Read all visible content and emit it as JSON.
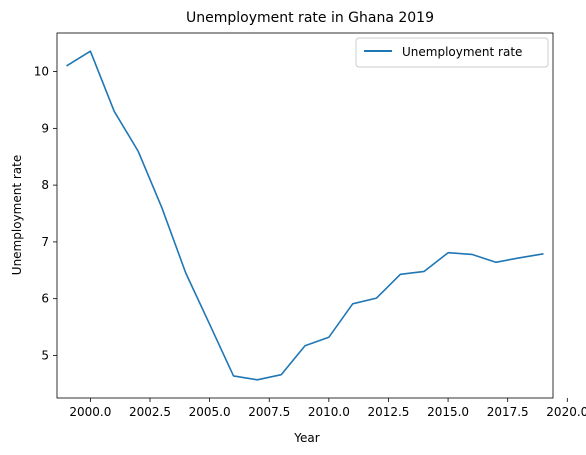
{
  "chart_data": {
    "type": "line",
    "title": "Unemployment rate in Ghana 2019",
    "xlabel": "Year",
    "ylabel": "Unemployment rate",
    "xlim": [
      1998.6,
      2019.4
    ],
    "ylim": [
      4.25,
      10.68
    ],
    "xticks": [
      2000.0,
      2002.5,
      2005.0,
      2007.5,
      2010.0,
      2012.5,
      2015.0,
      2017.5,
      2020.0
    ],
    "xtick_labels": [
      "2000.0",
      "2002.5",
      "2005.0",
      "2007.5",
      "2010.0",
      "2012.5",
      "2015.0",
      "2017.5",
      "2020.0"
    ],
    "yticks": [
      5,
      6,
      7,
      8,
      9,
      10
    ],
    "ytick_labels": [
      "5",
      "6",
      "7",
      "8",
      "9",
      "10"
    ],
    "grid": false,
    "legend": {
      "position": "top-right"
    },
    "series": [
      {
        "name": "Unemployment rate",
        "color": "#1f77b4",
        "x": [
          1999,
          2000,
          2001,
          2002,
          2003,
          2004,
          2005,
          2006,
          2007,
          2008,
          2009,
          2010,
          2011,
          2012,
          2013,
          2014,
          2015,
          2016,
          2017,
          2018,
          2019
        ],
        "y": [
          10.1,
          10.36,
          9.3,
          8.6,
          7.6,
          6.45,
          5.55,
          4.64,
          4.57,
          4.66,
          5.17,
          5.32,
          5.91,
          6.01,
          6.43,
          6.48,
          6.81,
          6.78,
          6.64,
          6.72,
          6.79
        ]
      }
    ]
  }
}
